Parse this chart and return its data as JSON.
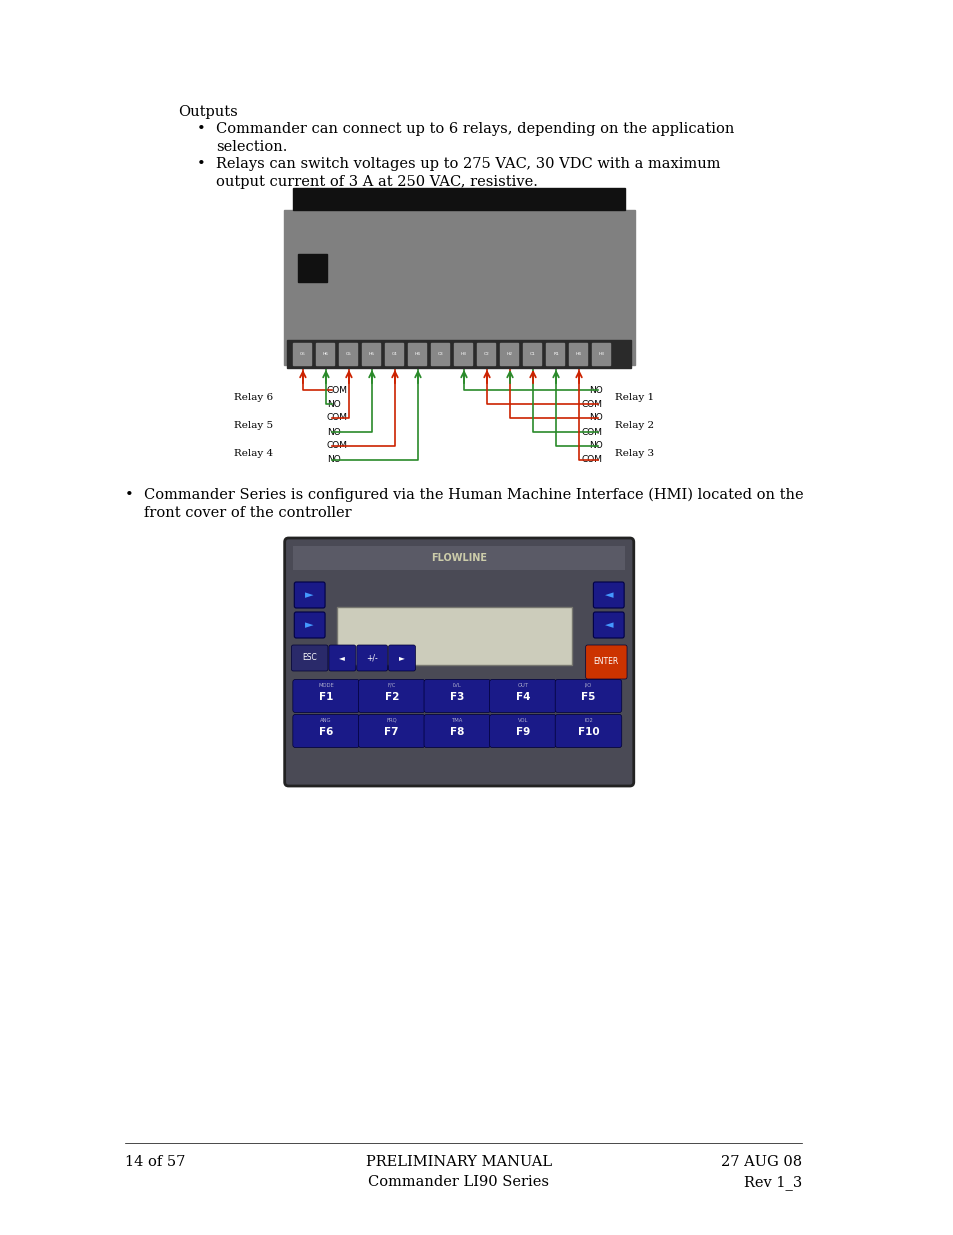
{
  "bg_color": "#ffffff",
  "text_color": "#000000",
  "page_width": 9.54,
  "page_height": 12.35,
  "outputs_label": "Outputs",
  "bullet1_line1": "Commander can connect up to 6 relays, depending on the application",
  "bullet1_line2": "selection.",
  "bullet2_line1": "Relays can switch voltages up to 275 VAC, 30 VDC with a maximum",
  "bullet2_line2": "output current of 3 A at 250 VAC, resistive.",
  "bullet3_line1": "Commander Series is configured via the Human Machine Interface (HMI) located on the",
  "bullet3_line2": "front cover of the controller",
  "footer_left": "14 of 57",
  "footer_center1": "PRELIMINARY MANUAL",
  "footer_center2": "Commander LI90 Series",
  "footer_right1": "27 AUG 08",
  "footer_right2": "Rev 1_3"
}
